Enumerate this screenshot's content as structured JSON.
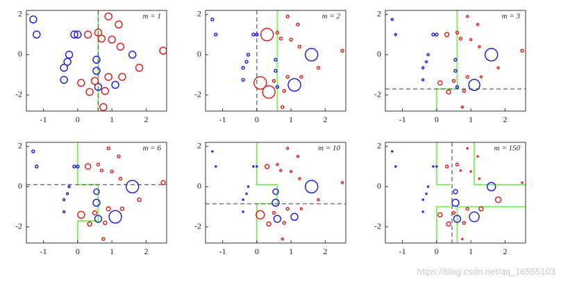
{
  "chart_data": [
    {
      "type": "scatter",
      "title": "m = 1",
      "xlim": [
        -1.5,
        2.6
      ],
      "ylim": [
        -2.8,
        2.2
      ],
      "xticks": [
        -1,
        0,
        1,
        2
      ],
      "yticks": [
        -2,
        0,
        2
      ],
      "series": [
        {
          "color": "#2222dd",
          "x": [
            -1.3,
            -1.2,
            -0.1,
            0.0,
            -0.25,
            -0.3,
            -0.4,
            -0.4,
            0.55,
            0.55,
            0.6,
            1.6,
            1.1
          ],
          "y": [
            1.75,
            1.0,
            1.0,
            1.0,
            0.0,
            -0.35,
            -0.65,
            -1.25,
            -0.25,
            -0.8,
            -1.6,
            0.0,
            -1.5
          ],
          "sizes": [
            5,
            5,
            5,
            5,
            5,
            5,
            5,
            5,
            5,
            5,
            5,
            5,
            5
          ]
        },
        {
          "color": "#dd2222",
          "x": [
            0.3,
            0.9,
            1.2,
            0.6,
            0.7,
            1.0,
            1.25,
            2.5,
            1.8,
            1.3,
            0.9,
            0.5,
            0.1,
            0.35,
            0.8,
            0.75
          ],
          "y": [
            1.0,
            1.9,
            1.5,
            1.1,
            0.8,
            0.75,
            0.4,
            0.2,
            -0.65,
            -1.1,
            -1.1,
            -1.3,
            -1.4,
            -1.85,
            -1.8,
            -2.6
          ],
          "sizes": [
            5,
            5,
            5,
            5,
            5,
            5,
            5,
            5,
            5,
            5,
            5,
            5,
            5,
            5,
            5,
            5
          ]
        }
      ],
      "boundary": {
        "color": "#88ee66",
        "pieces": [
          {
            "x": [
              0.6,
              0.6
            ],
            "y": [
              2.2,
              -2.8
            ]
          }
        ]
      },
      "stump": {
        "x": 0.6
      }
    },
    {
      "type": "scatter",
      "title": "m = 2",
      "xlim": [
        -1.5,
        2.6
      ],
      "ylim": [
        -2.8,
        2.2
      ],
      "xticks": [
        -1,
        0,
        1,
        2
      ],
      "yticks": [
        -2,
        0,
        2
      ],
      "series": [
        {
          "color": "#2222dd",
          "x": [
            -1.3,
            -1.2,
            -0.1,
            0.0,
            -0.25,
            -0.3,
            -0.4,
            -0.4,
            0.55,
            0.55,
            0.6,
            1.6,
            1.1
          ],
          "y": [
            1.75,
            1.0,
            1.0,
            1.0,
            0.0,
            -0.35,
            -0.65,
            -1.25,
            -0.25,
            -0.8,
            -1.6,
            0.0,
            -1.5
          ],
          "sizes": [
            2,
            2,
            2,
            2,
            2,
            2,
            2,
            2,
            2,
            2,
            2,
            9,
            9
          ]
        },
        {
          "color": "#dd2222",
          "x": [
            0.3,
            0.9,
            1.2,
            0.6,
            0.7,
            1.0,
            1.25,
            2.5,
            1.8,
            1.3,
            0.9,
            0.5,
            0.1,
            0.35,
            0.8,
            0.75
          ],
          "y": [
            1.0,
            1.9,
            1.5,
            1.1,
            0.8,
            0.75,
            0.4,
            0.2,
            -0.65,
            -1.1,
            -1.1,
            -1.3,
            -1.4,
            -1.85,
            -1.8,
            -2.6
          ],
          "sizes": [
            9,
            2,
            2,
            2,
            2,
            2,
            2,
            2,
            2,
            2,
            2,
            2,
            9,
            9,
            2,
            2
          ]
        }
      ],
      "boundary": {
        "color": "#88ee66",
        "pieces": [
          {
            "x": [
              0.6,
              0.6
            ],
            "y": [
              2.2,
              -2.8
            ]
          }
        ]
      },
      "stump": {
        "x": 0
      }
    },
    {
      "type": "scatter",
      "title": "m = 3",
      "xlim": [
        -1.5,
        2.6
      ],
      "ylim": [
        -2.8,
        2.2
      ],
      "xticks": [
        -1,
        0,
        1,
        2
      ],
      "yticks": [
        -2,
        0,
        2
      ],
      "series": [
        {
          "color": "#2222dd",
          "x": [
            -1.3,
            -1.2,
            -0.1,
            0.0,
            -0.25,
            -0.3,
            -0.4,
            -0.4,
            0.55,
            0.55,
            0.6,
            1.6,
            1.1
          ],
          "y": [
            1.75,
            1.0,
            1.0,
            1.0,
            0.0,
            -0.35,
            -0.65,
            -1.25,
            -0.25,
            -0.8,
            -1.6,
            0.0,
            -1.5
          ],
          "sizes": [
            1.5,
            1.5,
            2,
            2,
            1.5,
            1.5,
            1.5,
            1.5,
            2,
            2,
            2,
            9,
            8
          ]
        },
        {
          "color": "#dd2222",
          "x": [
            0.3,
            0.9,
            1.2,
            0.6,
            0.7,
            1.0,
            1.25,
            2.5,
            1.8,
            1.3,
            0.9,
            0.5,
            0.1,
            0.35,
            0.8,
            0.75
          ],
          "y": [
            1.0,
            1.9,
            1.5,
            1.1,
            0.8,
            0.75,
            0.4,
            0.2,
            -0.65,
            -1.1,
            -1.1,
            -1.3,
            -1.4,
            -1.85,
            -1.8,
            -2.6
          ],
          "sizes": [
            3,
            1.5,
            1.5,
            2,
            2,
            1.5,
            1.5,
            2,
            1.5,
            1.5,
            2,
            2,
            3,
            3,
            2,
            1.5
          ]
        }
      ],
      "boundary": {
        "color": "#88ee66",
        "pieces": [
          {
            "x": [
              0.6,
              0.6,
              0,
              0
            ],
            "y": [
              2.2,
              -1.7,
              -1.7,
              -2.8
            ]
          }
        ]
      },
      "stump": {
        "y": -1.7
      }
    },
    {
      "type": "scatter",
      "title": "m = 6",
      "xlim": [
        -1.5,
        2.6
      ],
      "ylim": [
        -2.8,
        2.2
      ],
      "xticks": [
        -1,
        0,
        1,
        2
      ],
      "yticks": [
        -2,
        0,
        2
      ],
      "series": [
        {
          "color": "#2222dd",
          "x": [
            -1.3,
            -1.2,
            -0.1,
            0.0,
            -0.25,
            -0.3,
            -0.4,
            -0.4,
            0.55,
            0.55,
            0.6,
            1.6,
            1.1
          ],
          "y": [
            1.75,
            1.0,
            1.0,
            1.0,
            0.0,
            -0.35,
            -0.65,
            -1.25,
            -0.25,
            -0.8,
            -1.6,
            0.0,
            -1.5
          ],
          "sizes": [
            2,
            2,
            2,
            2,
            1.5,
            1.5,
            1.5,
            1.5,
            4,
            5,
            5,
            9,
            9
          ]
        },
        {
          "color": "#dd2222",
          "x": [
            0.3,
            0.9,
            1.2,
            0.6,
            0.7,
            1.0,
            1.25,
            2.5,
            1.8,
            1.3,
            0.9,
            0.5,
            0.1,
            0.35,
            0.8,
            0.75
          ],
          "y": [
            1.0,
            1.9,
            1.5,
            1.1,
            0.8,
            0.75,
            0.4,
            0.2,
            -0.65,
            -1.1,
            -1.1,
            -1.3,
            -1.4,
            -1.85,
            -1.8,
            -2.6
          ],
          "sizes": [
            4,
            2,
            2,
            2,
            2,
            2,
            2,
            3,
            2.5,
            2.5,
            3,
            3,
            5,
            3,
            2.5,
            2
          ]
        }
      ],
      "boundary": {
        "color": "#88ee66",
        "pieces": [
          {
            "x": [
              0,
              0,
              0.6,
              0.6,
              0,
              0
            ],
            "y": [
              2.2,
              0.1,
              0.1,
              -1.7,
              -1.7,
              -2.8
            ]
          }
        ]
      },
      "stump": {
        "y": 0.1
      }
    },
    {
      "type": "scatter",
      "title": "m = 10",
      "xlim": [
        -1.5,
        2.6
      ],
      "ylim": [
        -2.8,
        2.2
      ],
      "xticks": [
        -1,
        0,
        1,
        2
      ],
      "yticks": [
        -2,
        0,
        2
      ],
      "series": [
        {
          "color": "#2222dd",
          "x": [
            -1.3,
            -1.2,
            -0.1,
            0.0,
            -0.25,
            -0.3,
            -0.4,
            -0.4,
            0.55,
            0.55,
            0.6,
            1.6,
            1.1
          ],
          "y": [
            1.75,
            1.0,
            1.0,
            1.0,
            0.0,
            -0.35,
            -0.65,
            -1.25,
            -0.25,
            -0.8,
            -1.6,
            0.0,
            -1.5
          ],
          "sizes": [
            1,
            1,
            1,
            1,
            1,
            1,
            1,
            1,
            4,
            5,
            5,
            9,
            5
          ]
        },
        {
          "color": "#dd2222",
          "x": [
            0.3,
            0.9,
            1.2,
            0.6,
            0.7,
            1.0,
            1.25,
            2.5,
            1.8,
            1.3,
            0.9,
            0.5,
            0.1,
            0.35,
            0.8,
            0.75
          ],
          "y": [
            1.0,
            1.9,
            1.5,
            1.1,
            0.8,
            0.75,
            0.4,
            0.2,
            -0.65,
            -1.1,
            -1.1,
            -1.3,
            -1.4,
            -1.85,
            -1.8,
            -2.6
          ],
          "sizes": [
            3,
            1.5,
            1.5,
            1.5,
            1.5,
            1.5,
            1.5,
            1.5,
            1.5,
            1.5,
            2,
            2,
            6,
            3,
            2,
            1.5
          ]
        }
      ],
      "boundary": {
        "color": "#88ee66",
        "pieces": [
          {
            "x": [
              0,
              0,
              0.6,
              0.6,
              0,
              0
            ],
            "y": [
              2.2,
              0.1,
              0.1,
              -0.85,
              -0.85,
              -2.8
            ]
          }
        ]
      },
      "stump": {
        "y": -0.85
      }
    },
    {
      "type": "scatter",
      "title": "m = 150",
      "xlim": [
        -1.5,
        2.6
      ],
      "ylim": [
        -2.8,
        2.2
      ],
      "xticks": [
        -1,
        0,
        1,
        2
      ],
      "yticks": [
        -2,
        0,
        2
      ],
      "series": [
        {
          "color": "#2222dd",
          "x": [
            -1.3,
            -1.2,
            -0.1,
            0.0,
            -0.25,
            -0.3,
            -0.4,
            -0.4,
            0.55,
            0.55,
            0.6,
            1.6,
            1.1
          ],
          "y": [
            1.75,
            1.0,
            1.0,
            1.0,
            0.0,
            -0.35,
            -0.65,
            -1.25,
            -0.25,
            -0.8,
            -1.6,
            0.0,
            -1.5
          ],
          "sizes": [
            1,
            1,
            1,
            1,
            1,
            1,
            1,
            1,
            3,
            5,
            5,
            6,
            7
          ]
        },
        {
          "color": "#dd2222",
          "x": [
            0.3,
            0.9,
            1.2,
            0.6,
            0.7,
            1.0,
            1.25,
            2.5,
            1.8,
            1.3,
            0.9,
            0.5,
            0.1,
            0.35,
            0.8,
            0.75
          ],
          "y": [
            1.0,
            1.9,
            1.5,
            1.1,
            0.8,
            0.75,
            0.4,
            0.2,
            -0.65,
            -1.1,
            -1.1,
            -1.3,
            -1.4,
            -1.85,
            -1.8,
            -2.6
          ],
          "sizes": [
            2,
            1,
            1,
            2,
            1,
            1,
            1,
            1,
            4,
            3,
            2,
            2,
            3,
            3,
            2,
            1
          ]
        }
      ],
      "boundary": {
        "color": "#88ee66",
        "pieces": [
          {
            "x": [
              0,
              0,
              0.4
            ],
            "y": [
              2.2,
              0.1,
              0.1
            ]
          },
          {
            "x": [
              1.1,
              1.1,
              2.6
            ],
            "y": [
              2.2,
              0.1,
              0.1
            ]
          },
          {
            "x": [
              0,
              0,
              0.4
            ],
            "y": [
              -2.8,
              -1.0,
              -1.0
            ]
          },
          {
            "x": [
              0.6,
              0.6,
              2.6
            ],
            "y": [
              -2.8,
              -1.0,
              -1.0
            ]
          }
        ]
      },
      "stump": {
        "x": 0.45
      }
    }
  ],
  "watermark": "https://blog.csdn.net/qq_16555103"
}
